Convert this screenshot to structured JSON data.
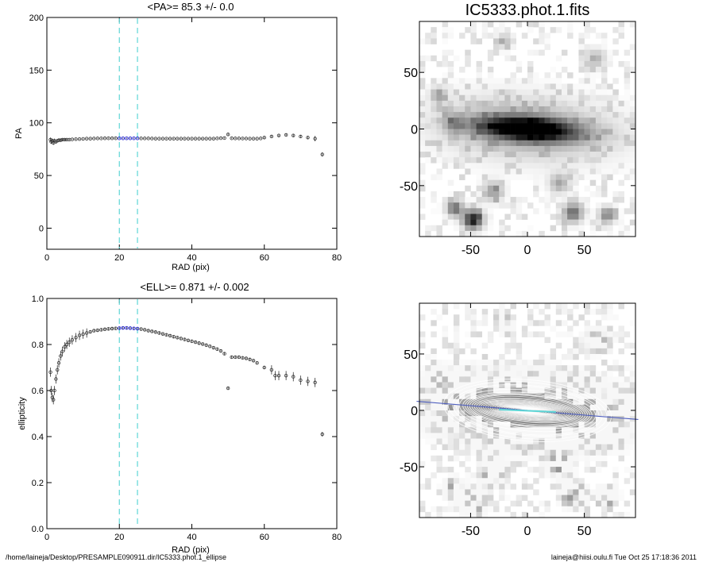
{
  "footer": {
    "path": "/home/laineja/Desktop/PRESAMPLE090911.dir/IC5333.phot.1_ellipse",
    "user_time": "laineja@hiisi.oulu.fi  Tue Oct 25 17:18:36 2011"
  },
  "chart_data": [
    {
      "type": "scatter",
      "panel": "pa-profile",
      "title": "<PA>=  85.3 +/-   0.0",
      "xlabel": "RAD (pix)",
      "ylabel": "PA",
      "xlim": [
        0,
        80
      ],
      "ylim": [
        -20,
        200
      ],
      "xticks": [
        0,
        20,
        40,
        60,
        80
      ],
      "yticks": [
        0,
        50,
        100,
        150,
        200
      ],
      "vlines": [
        20,
        25
      ],
      "highlight_range": [
        20,
        25
      ],
      "colors": {
        "points": "#333333",
        "highlight": "#2a2ad0",
        "vlines": "#5ed6d6"
      },
      "x": [
        1,
        1.2,
        1.5,
        1.8,
        2.1,
        2.5,
        2.9,
        3.3,
        3.8,
        4.3,
        4.9,
        5.5,
        6.2,
        7,
        8,
        9,
        10,
        11,
        12,
        13,
        14,
        15,
        16,
        17,
        18,
        19,
        20,
        21,
        22,
        23,
        24,
        25,
        26,
        27,
        28,
        29,
        30,
        31,
        32,
        33,
        34,
        35,
        36,
        37,
        38,
        39,
        40,
        41,
        42,
        43,
        44,
        45,
        46,
        47,
        48,
        49,
        50,
        51,
        52,
        53,
        54,
        55,
        56,
        57,
        58,
        59,
        60,
        62,
        64,
        66,
        68,
        70,
        72,
        74,
        76
      ],
      "y": [
        84,
        82,
        83,
        81,
        83,
        82,
        83,
        83.5,
        83.5,
        84,
        84,
        84,
        84,
        84.3,
        84.5,
        84.6,
        84.8,
        85,
        85,
        85.1,
        85.2,
        85.2,
        85.3,
        85.3,
        85.3,
        85.3,
        85.3,
        85.3,
        85.3,
        85.3,
        85.3,
        85.3,
        85.2,
        85.2,
        85.2,
        85.1,
        85,
        85,
        85,
        85,
        85,
        85,
        85,
        85,
        85,
        85,
        85,
        85,
        85,
        85,
        85,
        85,
        85,
        85.2,
        85.4,
        85.5,
        89,
        85.3,
        85.2,
        85.2,
        85.1,
        85.1,
        85,
        85,
        85,
        85.2,
        86,
        87,
        88,
        88.5,
        88,
        87,
        86,
        85,
        70
      ],
      "yerr": [
        2,
        2,
        2,
        2,
        2,
        1.5,
        1.5,
        1,
        1,
        1,
        1,
        0.8,
        0.8,
        0.6,
        0.6,
        0.5,
        0.5,
        0.5,
        0.5,
        0.5,
        0.5,
        0.5,
        0.5,
        0.5,
        0.5,
        0.5,
        0.5,
        0.5,
        0.5,
        0.5,
        0.5,
        0.5,
        0.5,
        0.5,
        0.5,
        0.5,
        0.5,
        0.5,
        0.5,
        0.5,
        0.5,
        0.5,
        0.5,
        0.5,
        0.5,
        0.5,
        0.5,
        0.5,
        0.5,
        0.5,
        0.5,
        0.5,
        0.5,
        0.5,
        0.5,
        0.5,
        1.5,
        0.5,
        0.5,
        0.5,
        0.5,
        0.5,
        0.5,
        0.5,
        0.5,
        0.5,
        1,
        1,
        1,
        1,
        1.5,
        1.5,
        1.5,
        2.5,
        2
      ]
    },
    {
      "type": "scatter",
      "panel": "ellipticity-profile",
      "title": "<ELL>= 0.871 +/-  0.002",
      "xlabel": "RAD (pix)",
      "ylabel": "ellipticity",
      "xlim": [
        0,
        80
      ],
      "ylim": [
        0,
        1
      ],
      "xticks": [
        0,
        20,
        40,
        60,
        80
      ],
      "yticks": [
        0.0,
        0.2,
        0.4,
        0.6,
        0.8,
        1.0
      ],
      "ytick_labels": [
        "0.0",
        "0.2",
        "0.4",
        "0.6",
        "0.8",
        "1.0"
      ],
      "vlines": [
        20,
        25
      ],
      "highlight_range": [
        20,
        25
      ],
      "colors": {
        "points": "#333333",
        "highlight": "#2a2ad0",
        "vlines": "#5ed6d6"
      },
      "x": [
        1,
        1.2,
        1.5,
        1.8,
        2.1,
        2.5,
        2.9,
        3.3,
        3.8,
        4.3,
        4.9,
        5.5,
        6.2,
        7,
        8,
        9,
        10,
        11,
        12,
        13,
        14,
        15,
        16,
        17,
        18,
        19,
        20,
        21,
        22,
        23,
        24,
        25,
        26,
        27,
        28,
        29,
        30,
        31,
        32,
        33,
        34,
        35,
        36,
        37,
        38,
        39,
        40,
        41,
        42,
        43,
        44,
        45,
        46,
        47,
        48,
        49,
        50,
        51,
        52,
        53,
        54,
        55,
        56,
        57,
        58,
        60,
        62,
        63,
        64,
        66,
        68,
        70,
        72,
        74,
        76
      ],
      "y": [
        0.68,
        0.6,
        0.57,
        0.56,
        0.6,
        0.65,
        0.69,
        0.72,
        0.75,
        0.77,
        0.79,
        0.8,
        0.81,
        0.82,
        0.83,
        0.84,
        0.845,
        0.85,
        0.855,
        0.86,
        0.862,
        0.864,
        0.866,
        0.868,
        0.869,
        0.87,
        0.871,
        0.872,
        0.872,
        0.871,
        0.87,
        0.869,
        0.867,
        0.864,
        0.86,
        0.857,
        0.854,
        0.85,
        0.846,
        0.842,
        0.838,
        0.834,
        0.83,
        0.826,
        0.822,
        0.818,
        0.814,
        0.81,
        0.806,
        0.802,
        0.797,
        0.792,
        0.786,
        0.78,
        0.772,
        0.76,
        0.61,
        0.745,
        0.745,
        0.745,
        0.742,
        0.74,
        0.735,
        0.73,
        0.72,
        0.7,
        0.69,
        0.665,
        0.665,
        0.665,
        0.66,
        0.645,
        0.64,
        0.635,
        0.41
      ]
    },
    {
      "type": "heatmap",
      "panel": "galaxy-image",
      "title": "IC5333.phot.1.fits",
      "xlim": [
        -95,
        95
      ],
      "ylim": [
        -95,
        95
      ],
      "xticks": [
        -50,
        0,
        50
      ],
      "yticks": [
        -50,
        0,
        50
      ],
      "colors": {
        "map": "grayscale"
      }
    },
    {
      "type": "heatmap",
      "panel": "ellipse-fit-overlay",
      "title": "",
      "xlim": [
        -95,
        95
      ],
      "ylim": [
        -95,
        95
      ],
      "xticks": [
        -50,
        0,
        50
      ],
      "yticks": [
        -50,
        0,
        50
      ],
      "major_axis_pa_deg": 85.3,
      "colors": {
        "map": "grayscale",
        "ellipses": "#ffffff",
        "axis": "#5060c0",
        "center": "#5ed6d6"
      }
    }
  ]
}
